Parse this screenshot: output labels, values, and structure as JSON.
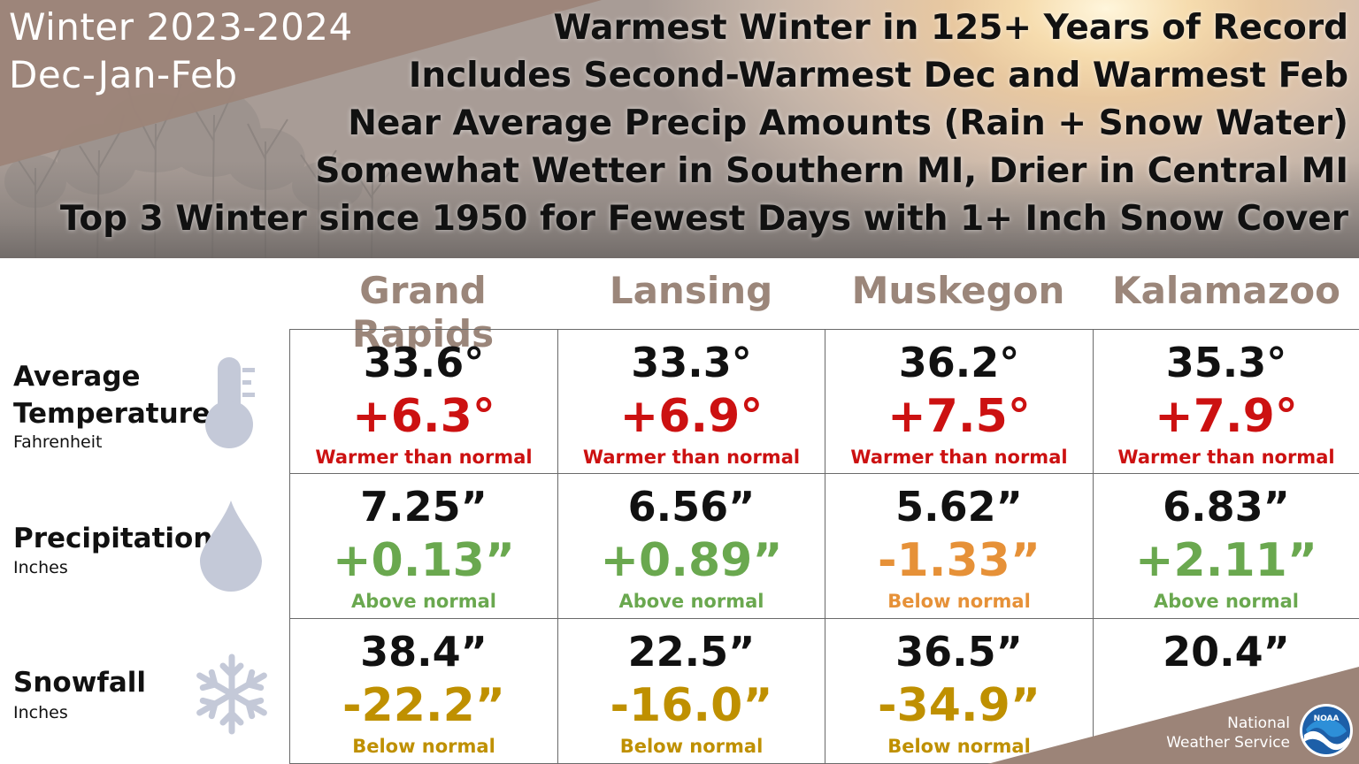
{
  "header": {
    "season_years": "Winter 2023-2024",
    "season_months": "Dec-Jan-Feb",
    "headlines": [
      "Warmest Winter in 125+ Years of Record",
      "Includes Second-Warmest Dec and Warmest Feb",
      "Near Average Precip Amounts (Rain + Snow Water)",
      "Somewhat Wetter in Southern MI, Drier in Central MI",
      "Top 3 Winter since 1950 for Fewest Days with 1+ Inch Snow Cover"
    ]
  },
  "cities": [
    "Grand Rapids",
    "Lansing",
    "Muskegon",
    "Kalamazoo"
  ],
  "rows": [
    {
      "label_line1": "Average",
      "label_line2": "Temperature",
      "unit": "Fahrenheit",
      "icon": "thermometer-icon",
      "cells": [
        {
          "value": "33.6°",
          "departure": "+6.3°",
          "note": "Warmer than normal",
          "color": "#cc1111"
        },
        {
          "value": "33.3°",
          "departure": "+6.9°",
          "note": "Warmer than normal",
          "color": "#cc1111"
        },
        {
          "value": "36.2°",
          "departure": "+7.5°",
          "note": "Warmer than normal",
          "color": "#cc1111"
        },
        {
          "value": "35.3°",
          "departure": "+7.9°",
          "note": "Warmer than normal",
          "color": "#cc1111"
        }
      ]
    },
    {
      "label_line1": "Precipitation",
      "label_line2": "",
      "unit": "Inches",
      "icon": "raindrop-icon",
      "cells": [
        {
          "value": "7.25”",
          "departure": "+0.13”",
          "note": "Above normal",
          "color": "#6aa84f"
        },
        {
          "value": "6.56”",
          "departure": "+0.89”",
          "note": "Above normal",
          "color": "#6aa84f"
        },
        {
          "value": "5.62”",
          "departure": "-1.33”",
          "note": "Below normal",
          "color": "#e69138"
        },
        {
          "value": "6.83”",
          "departure": "+2.11”",
          "note": "Above normal",
          "color": "#6aa84f"
        }
      ]
    },
    {
      "label_line1": "Snowfall",
      "label_line2": "",
      "unit": "Inches",
      "icon": "snowflake-icon",
      "cells": [
        {
          "value": "38.4”",
          "departure": "-22.2”",
          "note": "Below normal",
          "color": "#bf9000"
        },
        {
          "value": "22.5”",
          "departure": "-16.0”",
          "note": "Below normal",
          "color": "#bf9000"
        },
        {
          "value": "36.5”",
          "departure": "-34.9”",
          "note": "Below normal",
          "color": "#bf9000"
        },
        {
          "value": "20.4”",
          "departure": "",
          "note": "",
          "color": "#bf9000"
        }
      ]
    }
  ],
  "footer": {
    "org_line1": "National",
    "org_line2": "Weather Service",
    "logo_text": "NOAA"
  },
  "colors": {
    "city_header": "#9b867a",
    "banner_corner": "#9c8478",
    "icon_gray": "#c4c9d8"
  }
}
